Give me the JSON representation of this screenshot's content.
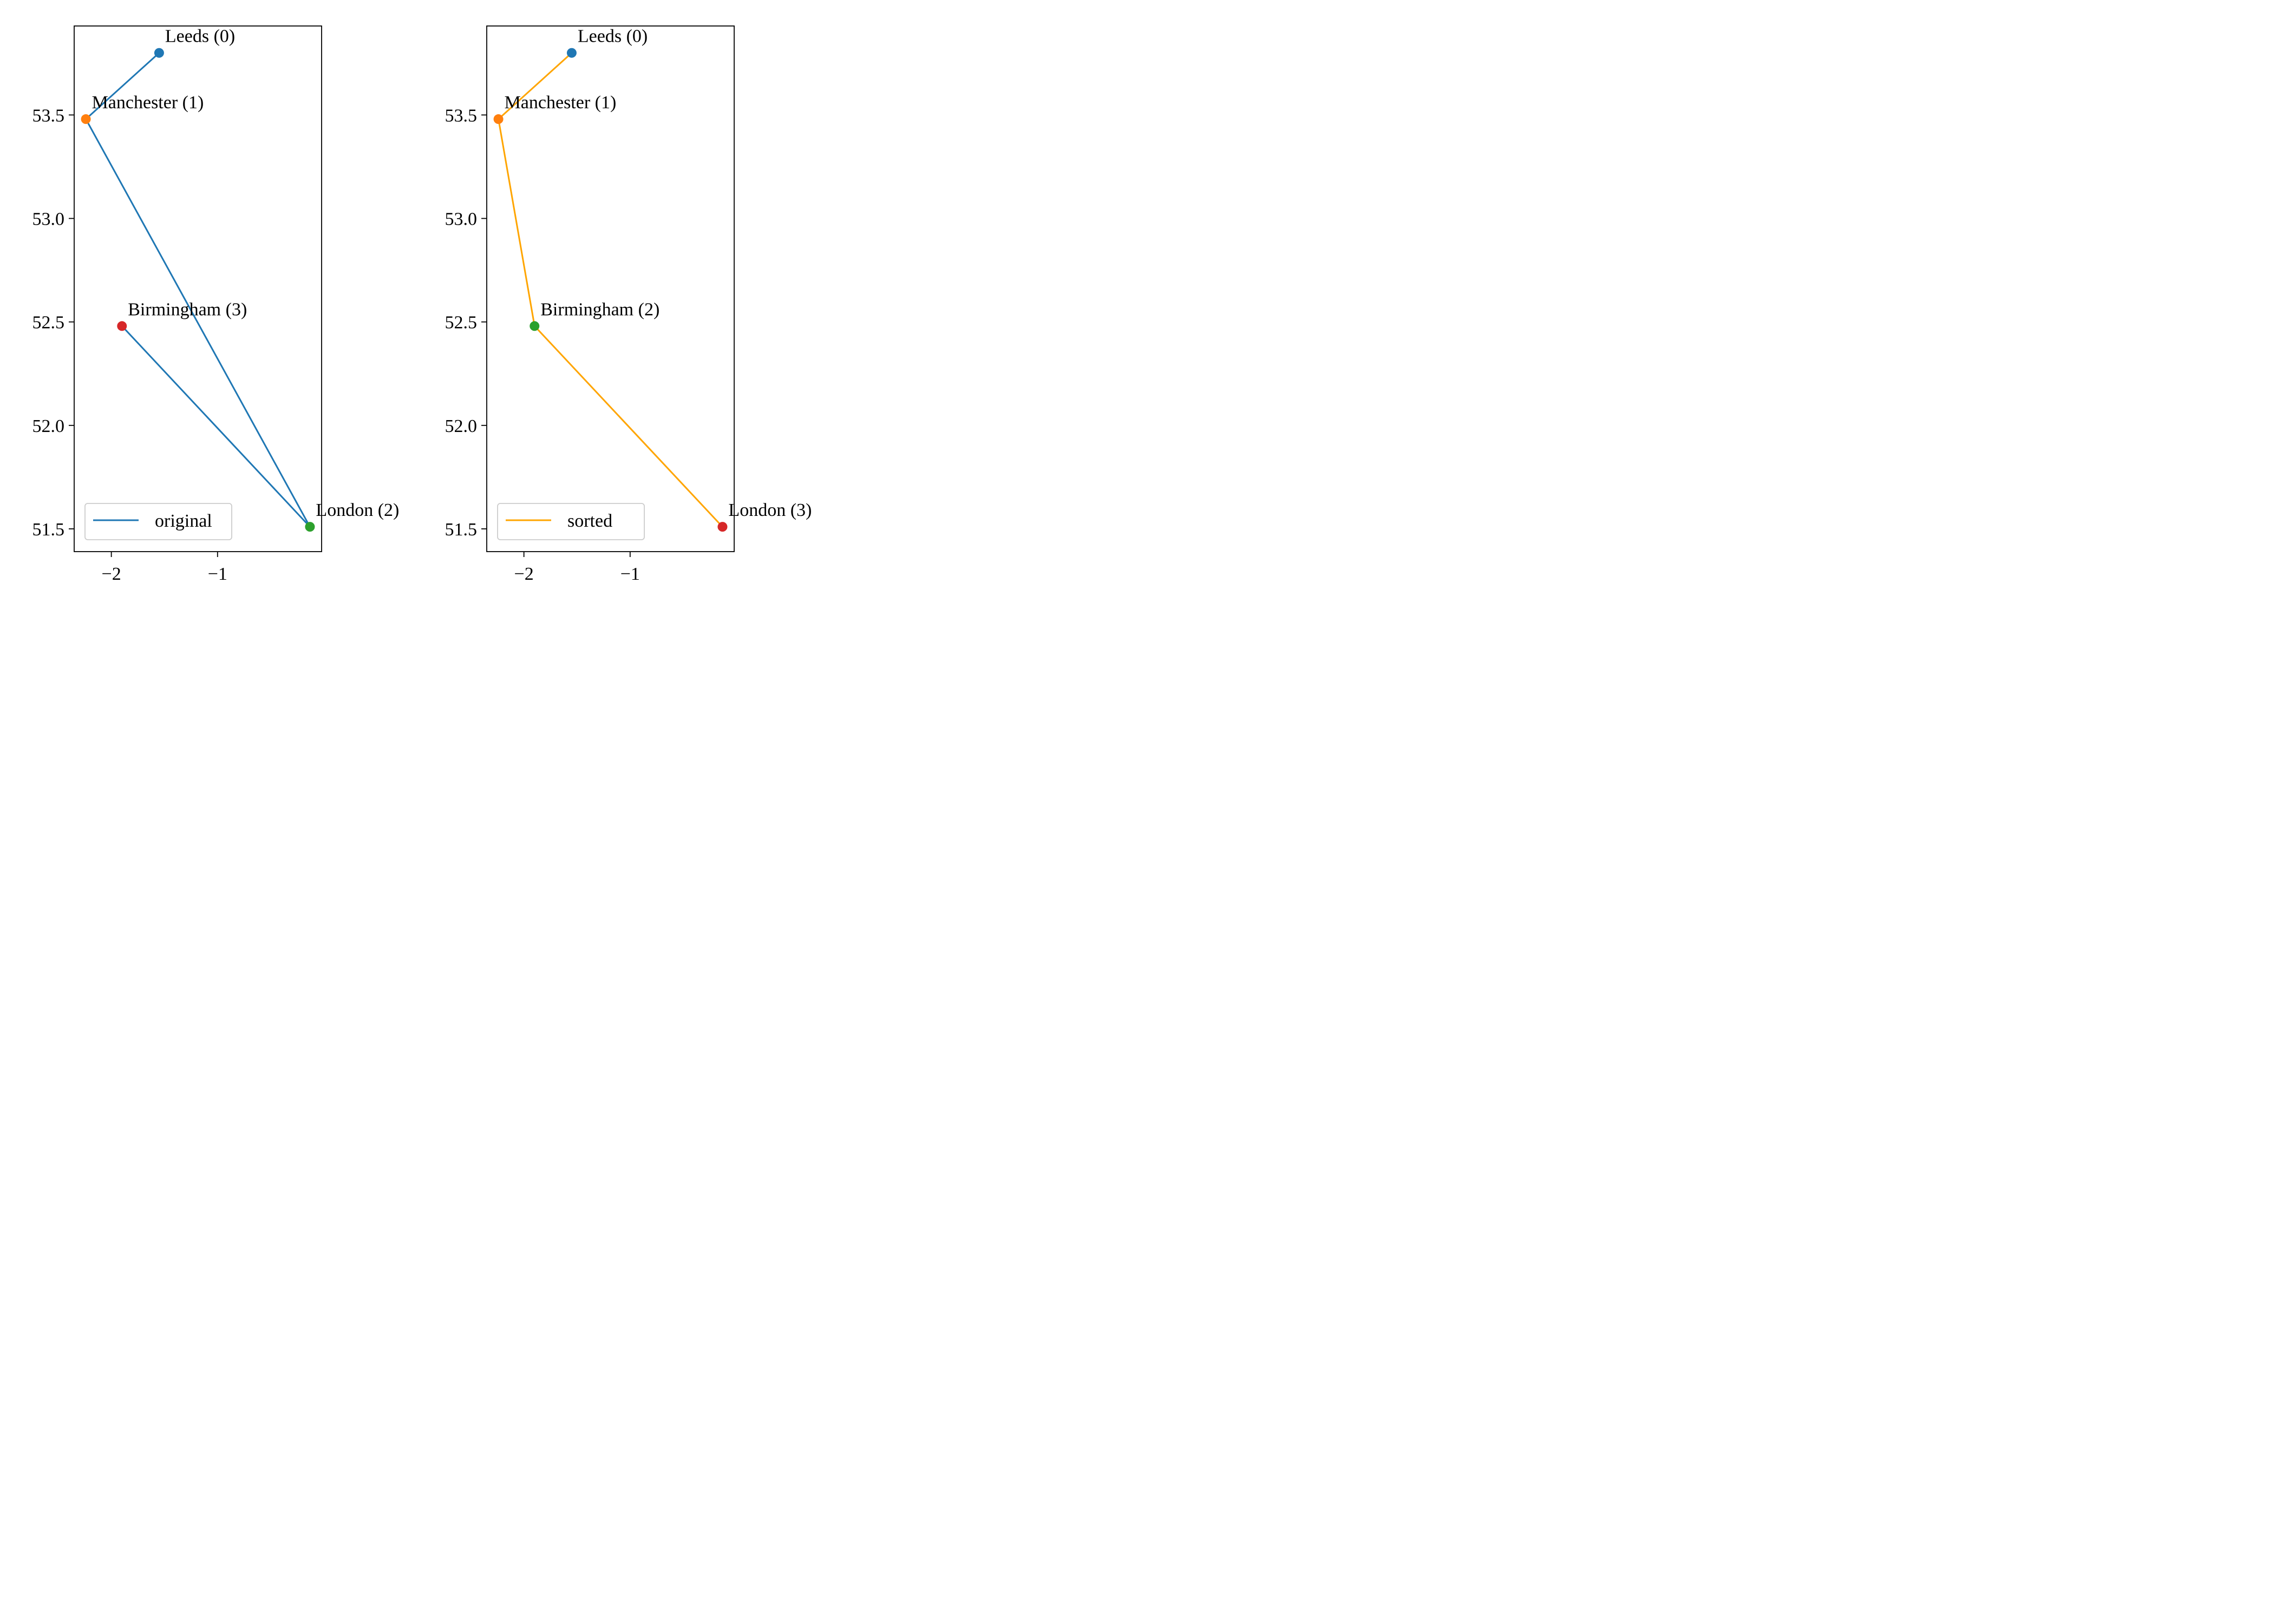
{
  "chart_data": [
    {
      "type": "line",
      "title": "",
      "xlabel": "",
      "ylabel": "",
      "xlim": [
        -2.35,
        -0.02
      ],
      "ylim": [
        51.39,
        53.93
      ],
      "xticks": [
        -2,
        -1
      ],
      "xtick_labels": [
        "−2",
        "−1"
      ],
      "yticks": [
        51.5,
        52.0,
        52.5,
        53.0,
        53.5
      ],
      "ytick_labels": [
        "51.5",
        "52.0",
        "52.5",
        "53.0",
        "53.5"
      ],
      "grid": false,
      "legend_position": "lower-left",
      "series": [
        {
          "name": "original",
          "color": "#1f77b4",
          "points": [
            {
              "label": "Leeds (0)",
              "x": -1.55,
              "y": 53.8,
              "marker_color": "#1f77b4"
            },
            {
              "label": "Manchester (1)",
              "x": -2.24,
              "y": 53.48,
              "marker_color": "#ff7f0e"
            },
            {
              "label": "London (2)",
              "x": -0.13,
              "y": 51.51,
              "marker_color": "#2ca02c"
            },
            {
              "label": "Birmingham (3)",
              "x": -1.9,
              "y": 52.48,
              "marker_color": "#d62728"
            }
          ]
        }
      ]
    },
    {
      "type": "line",
      "title": "",
      "xlabel": "",
      "ylabel": "",
      "xlim": [
        -2.35,
        -0.02
      ],
      "ylim": [
        51.39,
        53.93
      ],
      "xticks": [
        -2,
        -1
      ],
      "xtick_labels": [
        "−2",
        "−1"
      ],
      "yticks": [
        51.5,
        52.0,
        52.5,
        53.0,
        53.5
      ],
      "ytick_labels": [
        "51.5",
        "52.0",
        "52.5",
        "53.0",
        "53.5"
      ],
      "grid": false,
      "legend_position": "lower-left",
      "series": [
        {
          "name": "sorted",
          "color": "#ffa500",
          "points": [
            {
              "label": "Leeds (0)",
              "x": -1.55,
              "y": 53.8,
              "marker_color": "#1f77b4"
            },
            {
              "label": "Manchester (1)",
              "x": -2.24,
              "y": 53.48,
              "marker_color": "#ff7f0e"
            },
            {
              "label": "Birmingham (2)",
              "x": -1.9,
              "y": 52.48,
              "marker_color": "#2ca02c"
            },
            {
              "label": "London (3)",
              "x": -0.13,
              "y": 51.51,
              "marker_color": "#d62728"
            }
          ]
        }
      ]
    }
  ]
}
